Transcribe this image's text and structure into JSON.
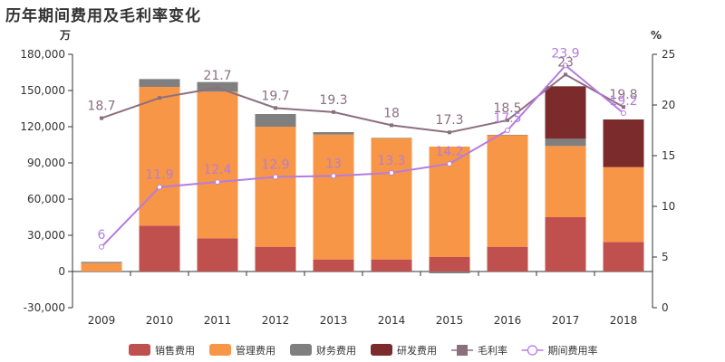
{
  "title": "历年期间费用及毛利率变化",
  "chart_data": {
    "type": "bar",
    "stacked": true,
    "categories": [
      "2009",
      "2010",
      "2011",
      "2012",
      "2013",
      "2014",
      "2015",
      "2016",
      "2017",
      "2018"
    ],
    "left_axis": {
      "unit": "万",
      "ylim": [
        -30000,
        180000
      ],
      "ticks": [
        "-30,000",
        "0",
        "30,000",
        "60,000",
        "90,000",
        "120,000",
        "150,000",
        "180,000"
      ]
    },
    "right_axis": {
      "unit": "%",
      "ylim": [
        0,
        25
      ],
      "ticks": [
        "0",
        "5",
        "10",
        "15",
        "20",
        "25"
      ]
    },
    "series": [
      {
        "name": "销售费用",
        "color": "#c0504d",
        "values": [
          0,
          38000,
          27500,
          20500,
          10000,
          10000,
          12000,
          20500,
          45000,
          24500
        ]
      },
      {
        "name": "管理费用",
        "color": "#f79646",
        "values": [
          7000,
          115000,
          121500,
          99500,
          103500,
          100500,
          91500,
          92500,
          59000,
          62000
        ]
      },
      {
        "name": "财务费用",
        "color": "#7f7f7f",
        "values": [
          1000,
          6500,
          8000,
          10500,
          2000,
          300,
          -1500,
          300,
          6000,
          0
        ]
      },
      {
        "name": "研发费用",
        "color": "#7b2b2b",
        "values": [
          0,
          0,
          0,
          0,
          0,
          0,
          0,
          0,
          43500,
          39500
        ]
      }
    ],
    "lines": [
      {
        "name": "毛利率",
        "color": "#8c6f7f",
        "marker": "square",
        "values": [
          18.7,
          20.7,
          21.7,
          19.7,
          19.3,
          18,
          17.3,
          18.5,
          23,
          19.8
        ],
        "labels": [
          "18.7",
          "",
          "21.7",
          "19.7",
          "19.3",
          "18",
          "17.3",
          "18.5",
          "23",
          "19.8"
        ]
      },
      {
        "name": "期间费用率",
        "color": "#b57be0",
        "marker": "circle",
        "values": [
          6,
          11.9,
          12.4,
          12.9,
          13,
          13.3,
          14.2,
          17.5,
          23.9,
          19.2
        ],
        "labels": [
          "6",
          "11.9",
          "12.4",
          "12.9",
          "13",
          "13.3",
          "14.2",
          "17.5",
          "23.9",
          "19.2"
        ]
      }
    ],
    "grid": false,
    "legend_position": "bottom"
  }
}
